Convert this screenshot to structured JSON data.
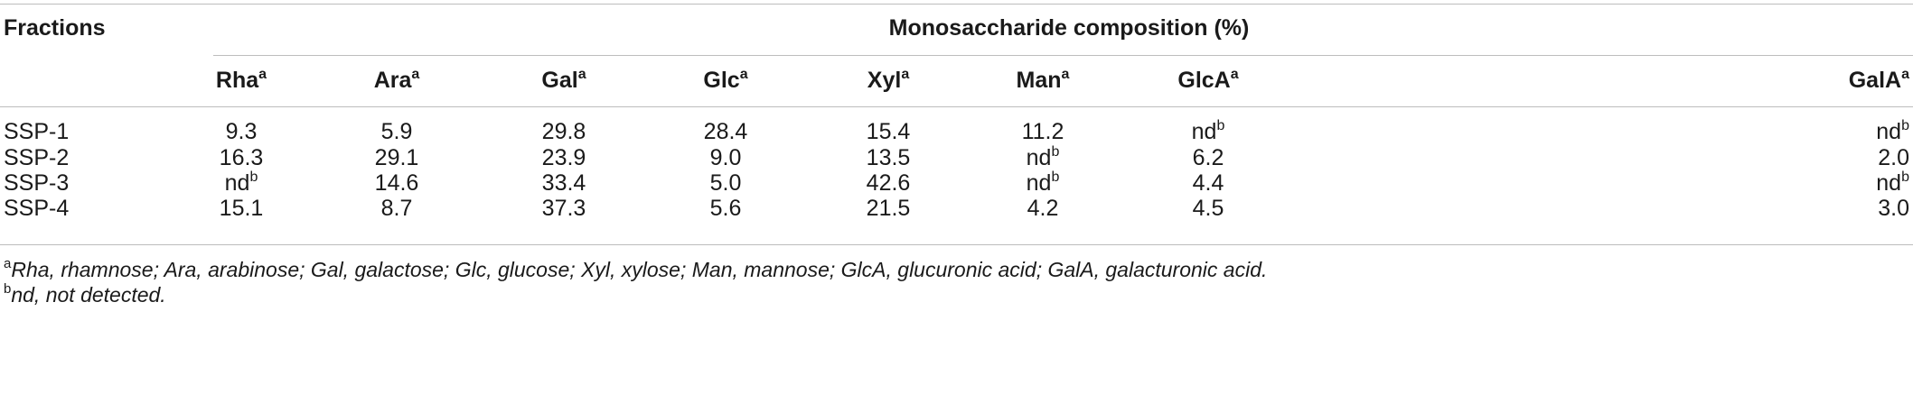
{
  "table": {
    "row_header_label": "Fractions",
    "group_header_label": "Monosaccharide composition (%)",
    "superscript_a": "a",
    "superscript_b": "b",
    "columns": [
      "Rha",
      "Ara",
      "Gal",
      "Glc",
      "Xyl",
      "Man",
      "GlcA",
      "GalA"
    ],
    "rows": [
      {
        "name": "SSP-1",
        "cells": [
          {
            "v": "9.3"
          },
          {
            "v": "5.9"
          },
          {
            "v": "29.8"
          },
          {
            "v": "28.4"
          },
          {
            "v": "15.4"
          },
          {
            "v": "11.2"
          },
          {
            "v": "nd",
            "sup": "b"
          },
          {
            "v": "nd",
            "sup": "b"
          }
        ]
      },
      {
        "name": "SSP-2",
        "cells": [
          {
            "v": "16.3"
          },
          {
            "v": "29.1"
          },
          {
            "v": "23.9"
          },
          {
            "v": "9.0"
          },
          {
            "v": "13.5"
          },
          {
            "v": "nd",
            "sup": "b"
          },
          {
            "v": "6.2"
          },
          {
            "v": "2.0"
          }
        ]
      },
      {
        "name": "SSP-3",
        "cells": [
          {
            "v": "nd",
            "sup": "b"
          },
          {
            "v": "14.6"
          },
          {
            "v": "33.4"
          },
          {
            "v": "5.0"
          },
          {
            "v": "42.6"
          },
          {
            "v": "nd",
            "sup": "b"
          },
          {
            "v": "4.4"
          },
          {
            "v": "nd",
            "sup": "b"
          }
        ]
      },
      {
        "name": "SSP-4",
        "cells": [
          {
            "v": "15.1"
          },
          {
            "v": "8.7"
          },
          {
            "v": "37.3"
          },
          {
            "v": "5.6"
          },
          {
            "v": "21.5"
          },
          {
            "v": "4.2"
          },
          {
            "v": "4.5"
          },
          {
            "v": "3.0"
          }
        ]
      }
    ]
  },
  "footnotes": [
    {
      "mark": "a",
      "text": "Rha, rhamnose; Ara, arabinose; Gal, galactose; Glc, glucose; Xyl, xylose; Man, mannose; GlcA, glucuronic acid; GalA, galacturonic acid."
    },
    {
      "mark": "b",
      "text": "nd, not detected."
    }
  ],
  "colors": {
    "rule": "#bdbdbd",
    "text": "#1a1a1a",
    "background": "#ffffff"
  }
}
